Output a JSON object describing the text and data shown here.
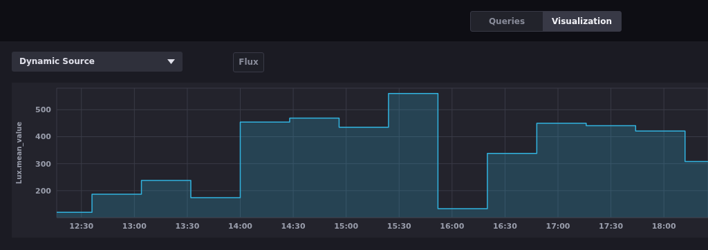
{
  "chart_data": {
    "type": "area",
    "ylabel": "Lux.mean_value",
    "annotations": [
      "Queries",
      "Visualization",
      "Dynamic Source",
      "Flux"
    ],
    "x": [
      12.2667,
      12.6,
      12.6,
      13.0667,
      13.0667,
      13.5333,
      13.5333,
      14,
      14,
      14.4667,
      14.4667,
      14.9333,
      14.9333,
      15.4,
      15.4,
      15.8667,
      15.8667,
      16.3333,
      16.3333,
      16.8,
      16.8,
      17.2667,
      17.2667,
      17.7333,
      17.7333,
      18.2,
      18.2,
      18.4167
    ],
    "series": [
      {
        "color": "#32b4e0",
        "values": [
          120,
          120,
          187,
          187,
          238,
          238,
          174,
          174,
          454,
          454,
          469,
          469,
          435,
          435,
          560,
          560,
          133,
          133,
          338,
          338,
          450,
          450,
          441,
          441,
          421,
          421,
          308,
          308
        ]
      }
    ],
    "xlim": [
      12.2667,
      18.4167
    ],
    "xticks": [
      {
        "value": 12.5,
        "label": "12:30"
      },
      {
        "value": 13,
        "label": "13:00"
      },
      {
        "value": 13.5,
        "label": "13:30"
      },
      {
        "value": 14,
        "label": "14:00"
      },
      {
        "value": 14.5,
        "label": "14:30"
      },
      {
        "value": 15,
        "label": "15:00"
      },
      {
        "value": 15.5,
        "label": "15:30"
      },
      {
        "value": 16,
        "label": "16:00"
      },
      {
        "value": 16.5,
        "label": "16:30"
      },
      {
        "value": 17,
        "label": "17:00"
      },
      {
        "value": 17.5,
        "label": "17:30"
      },
      {
        "value": 18,
        "label": "18:00"
      }
    ],
    "ylim": [
      100,
      580
    ],
    "yticks": [
      200,
      300,
      400,
      500
    ],
    "grid": true,
    "legend": false,
    "marker": "none",
    "line_style": "solid"
  }
}
